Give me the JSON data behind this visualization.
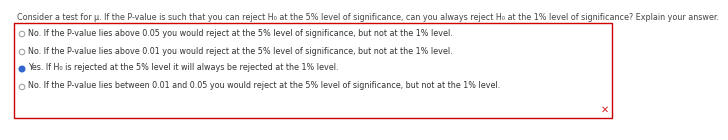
{
  "question": "Consider a test for μ. If the P-value is such that you can reject H₀ at the 5% level of significance, can you always reject H₀ at the 1% level of significance? Explain your answer.",
  "options": [
    "No. If the P-value lies above 0.05 you would reject at the 5% level of significance, but not at the 1% level.",
    "No. If the P-value lies above 0.01 you would reject at the 5% level of significance, but not at the 1% level.",
    "Yes. If H₀ is rejected at the 5% level it will always be rejected at the 1% level.",
    "No. If the P-value lies between 0.01 and 0.05 you would reject at the 5% level of significance, but not at the 1% level."
  ],
  "selected_index": 2,
  "background_color": "#ffffff",
  "box_border_color": "#cc0000",
  "selected_radio_color": "#3366cc",
  "unselected_radio_color": "#999999",
  "question_fontsize": 5.8,
  "option_fontsize": 5.8,
  "x_mark_color": "#cc2222",
  "question_color": "#444444",
  "option_color": "#333333"
}
